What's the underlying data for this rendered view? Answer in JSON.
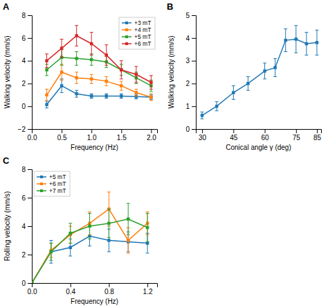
{
  "chart_data": [
    {
      "type": "line",
      "title": "A",
      "x_label": "Frequency (Hz)",
      "y_label": "Walking velocity (mm/s)",
      "x": [
        0.25,
        0.5,
        0.75,
        1.0,
        1.25,
        1.5,
        1.75,
        2.0
      ],
      "series": [
        {
          "name": "+3 mT",
          "values": [
            0.15,
            1.8,
            1.1,
            0.9,
            0.9,
            0.9,
            0.85,
            0.8
          ],
          "errors": [
            0.3,
            0.6,
            0.3,
            0.2,
            0.2,
            0.2,
            0.2,
            0.2
          ]
        },
        {
          "name": "+4 mT",
          "values": [
            1.0,
            3.0,
            2.5,
            2.4,
            2.2,
            1.8,
            1.2,
            0.8
          ],
          "errors": [
            0.5,
            0.7,
            0.5,
            0.4,
            0.4,
            0.4,
            0.3,
            0.3
          ]
        },
        {
          "name": "+5 mT",
          "values": [
            3.2,
            4.3,
            4.2,
            4.1,
            3.9,
            3.2,
            2.5,
            1.8
          ],
          "errors": [
            0.5,
            0.7,
            0.6,
            0.5,
            0.5,
            0.5,
            0.5,
            0.5
          ]
        },
        {
          "name": "+6 mT",
          "values": [
            4.0,
            5.1,
            6.2,
            5.5,
            4.5,
            3.2,
            2.8,
            2.1
          ],
          "errors": [
            0.6,
            0.8,
            0.9,
            1.0,
            0.9,
            0.8,
            0.7,
            0.6
          ]
        }
      ],
      "xlim": [
        0,
        2.1
      ],
      "ylim": [
        -2,
        8
      ],
      "xticks": [
        {
          "value": 0,
          "label": "0.0"
        },
        0.5,
        {
          "value": 1.0,
          "label": "1.0"
        },
        1.5,
        {
          "value": 2.0,
          "label": "2.0"
        }
      ],
      "yticks": [
        {
          "value": -2,
          "label": "−2"
        },
        0,
        2,
        4,
        6,
        8
      ],
      "legend": "upper right",
      "marker": "square"
    },
    {
      "type": "line",
      "title": "B",
      "x_label": "Conical angle γ (deg)",
      "y_label": "Walking velocity (mm/s)",
      "x": [
        30,
        37,
        45,
        52,
        60,
        65,
        70,
        75,
        80,
        85
      ],
      "series": [
        {
          "values": [
            0.6,
            1.0,
            1.6,
            2.0,
            2.55,
            2.7,
            3.9,
            3.95,
            3.75,
            3.8
          ],
          "errors": [
            0.15,
            0.2,
            0.3,
            0.3,
            0.35,
            0.4,
            0.5,
            0.6,
            0.5,
            0.55
          ]
        }
      ],
      "xlim": [
        27,
        87
      ],
      "ylim": [
        0,
        5
      ],
      "xticks": [
        30,
        45,
        60,
        75,
        85
      ],
      "yticks": [
        0,
        1,
        2,
        3,
        4,
        5
      ],
      "marker": "square"
    },
    {
      "type": "line",
      "title": "C",
      "x_label": "Frequency (Hz)",
      "y_label": "Rolling velocity (mm/s)",
      "x": [
        0.0,
        0.2,
        0.4,
        0.6,
        0.8,
        1.0,
        1.2
      ],
      "series": [
        {
          "name": "+5 mT",
          "values": [
            0.0,
            2.2,
            2.5,
            3.3,
            3.0,
            2.9,
            2.8
          ],
          "errors": [
            0.0,
            0.8,
            0.6,
            0.7,
            0.8,
            0.7,
            0.7
          ]
        },
        {
          "name": "+6 mT",
          "values": [
            0.0,
            2.3,
            3.4,
            4.2,
            5.2,
            3.0,
            4.2
          ],
          "errors": [
            0.0,
            0.5,
            0.6,
            0.8,
            1.2,
            0.9,
            0.8
          ]
        },
        {
          "name": "+7 mT",
          "values": [
            0.0,
            2.2,
            3.5,
            4.0,
            4.2,
            4.5,
            3.9
          ],
          "errors": [
            0.0,
            0.6,
            0.7,
            0.9,
            1.0,
            1.1,
            1.0
          ]
        }
      ],
      "xlim": [
        0,
        1.3
      ],
      "ylim": [
        0,
        8
      ],
      "xticks": [
        {
          "value": 0,
          "label": "0.0"
        },
        0.4,
        0.8,
        1.2
      ],
      "yticks": [
        0,
        2,
        4,
        6,
        8
      ],
      "legend": "upper left",
      "marker": "square"
    }
  ]
}
